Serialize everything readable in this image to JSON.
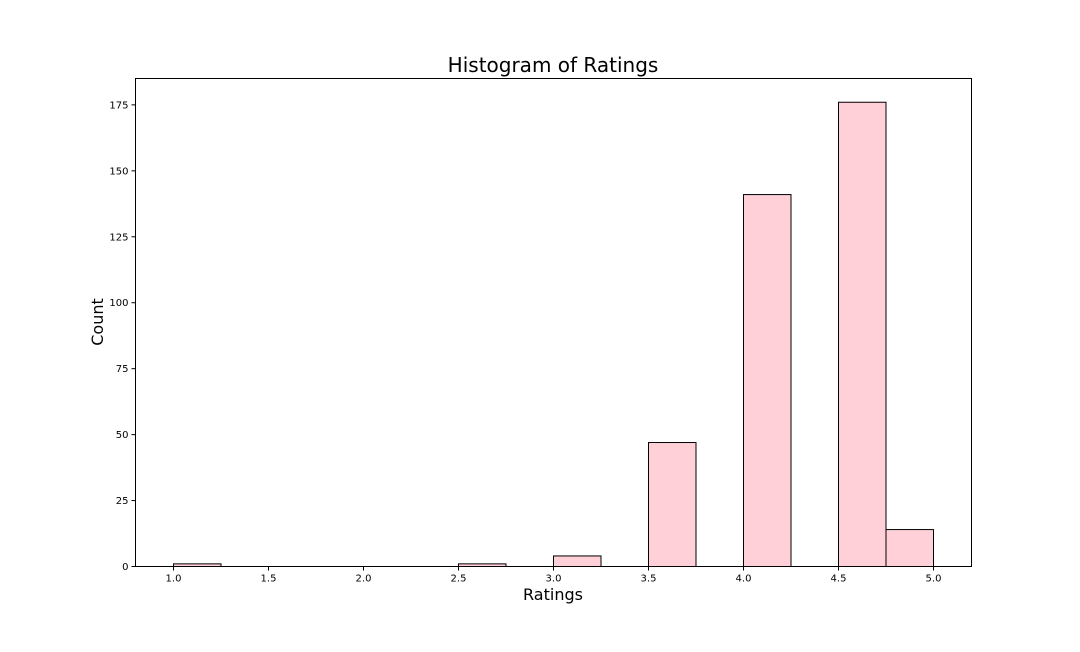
{
  "chart_data": {
    "type": "bar",
    "title": "Histogram of Ratings",
    "xlabel": "Ratings",
    "ylabel": "Count",
    "xlim": [
      0.8,
      5.2
    ],
    "ylim": [
      0,
      185
    ],
    "xticks": [
      1.0,
      1.5,
      2.0,
      2.5,
      3.0,
      3.5,
      4.0,
      4.5,
      5.0
    ],
    "yticks": [
      0,
      25,
      50,
      75,
      100,
      125,
      150,
      175
    ],
    "grid": false,
    "legend": "none",
    "bins": [
      {
        "start": 1.0,
        "end": 1.25,
        "count": 1
      },
      {
        "start": 2.5,
        "end": 2.75,
        "count": 1
      },
      {
        "start": 3.0,
        "end": 3.25,
        "count": 4
      },
      {
        "start": 3.5,
        "end": 3.75,
        "count": 47
      },
      {
        "start": 4.0,
        "end": 4.25,
        "count": 141
      },
      {
        "start": 4.5,
        "end": 4.75,
        "count": 176
      },
      {
        "start": 4.75,
        "end": 5.0,
        "count": 14
      }
    ],
    "colors": {
      "bar_fill": "#ffd0d8",
      "bar_edge": "#000000",
      "axis": "#000000"
    }
  }
}
